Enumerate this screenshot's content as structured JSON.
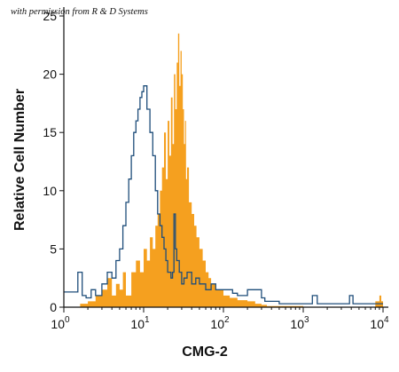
{
  "watermark": "with permission from R & D Systems",
  "chart_data": {
    "type": "histogram",
    "xlabel": "CMG-2",
    "ylabel": "Relative Cell Number",
    "xscale": "log",
    "xlim": [
      1,
      10000
    ],
    "ylim": [
      0,
      25
    ],
    "yticks": [
      0,
      5,
      10,
      15,
      20,
      25
    ],
    "xticks": [
      {
        "base": "10",
        "exp": "0"
      },
      {
        "base": "10",
        "exp": "1"
      },
      {
        "base": "10",
        "exp": "2"
      },
      {
        "base": "10",
        "exp": "3"
      },
      {
        "base": "10",
        "exp": "4"
      }
    ],
    "colors": {
      "filled": "#f5a01f",
      "outline": "#1e4d7a"
    },
    "series": [
      {
        "style": "filled",
        "x": [
          1.0,
          1.6,
          2.0,
          2.5,
          3.0,
          3.5,
          4.0,
          4.5,
          5.0,
          5.5,
          6.0,
          7.0,
          8.0,
          9.0,
          10.0,
          11.0,
          12.0,
          13.0,
          14.0,
          15.0,
          16.0,
          17.0,
          18.0,
          19.0,
          20.0,
          21.0,
          22.0,
          23.0,
          24.0,
          25.0,
          26.0,
          27.0,
          28.0,
          29.0,
          30.0,
          31.0,
          32.0,
          33.0,
          34.0,
          35.0,
          37.0,
          40.0,
          43.0,
          46.0,
          50.0,
          55.0,
          60.0,
          65.0,
          70.0,
          80.0,
          90.0,
          100.0,
          120.0,
          150.0,
          200.0,
          250.0,
          300.0,
          350.0,
          500.0,
          1000.0,
          3000.0,
          8000.0,
          9000.0,
          9500.0,
          10000.0
        ],
        "y": [
          0,
          0.3,
          0.5,
          1,
          1.5,
          2.5,
          1,
          2,
          1.5,
          3,
          1,
          3,
          4,
          3,
          5,
          4,
          6,
          5,
          7,
          8,
          10,
          12,
          15,
          11,
          16,
          13,
          18,
          14,
          20,
          17,
          21,
          23.5,
          19,
          22,
          20,
          17,
          14,
          16,
          11,
          12,
          9,
          8,
          7,
          6,
          5,
          4,
          3,
          2.5,
          2,
          1.5,
          1.5,
          1,
          0.8,
          0.6,
          0.5,
          0.3,
          0.2,
          0.1,
          0.1,
          0,
          0,
          0.5,
          1,
          0.5,
          0
        ]
      },
      {
        "style": "outline",
        "x": [
          1.0,
          1.5,
          1.7,
          1.9,
          2.2,
          2.5,
          3.0,
          3.5,
          4.0,
          4.5,
          5.0,
          5.5,
          6.0,
          6.5,
          7.0,
          7.5,
          8.0,
          8.5,
          9.0,
          9.5,
          10.0,
          11.0,
          12.0,
          13.0,
          14.0,
          15.0,
          16.0,
          17.0,
          18.0,
          19.0,
          20.0,
          21.0,
          22.0,
          23.0,
          24.0,
          25.0,
          26.0,
          28.0,
          30.0,
          32.0,
          35.0,
          40.0,
          45.0,
          50.0,
          60.0,
          70.0,
          80.0,
          100.0,
          130.0,
          150.0,
          200.0,
          300.0,
          330.0,
          500.0,
          1000.0,
          1300.0,
          1500.0,
          1700.0,
          3000.0,
          3800.0,
          4200.0,
          6000.0,
          10000.0
        ],
        "y": [
          1.3,
          3,
          1,
          0.8,
          1.5,
          1,
          2,
          3,
          2.5,
          4,
          5,
          7,
          9,
          11,
          13,
          15,
          16,
          17,
          18,
          18.5,
          19,
          17,
          15,
          13,
          10,
          8,
          7,
          6,
          5,
          4,
          3,
          3,
          2.5,
          3,
          8,
          5,
          4,
          3,
          2,
          2.5,
          3,
          2,
          2.5,
          2,
          1.5,
          2,
          1.5,
          1.5,
          1.2,
          1,
          1.5,
          0.8,
          0.5,
          0.3,
          0.3,
          1,
          0.3,
          0.3,
          0.3,
          1,
          0.3,
          0.3,
          0.3
        ]
      }
    ]
  }
}
